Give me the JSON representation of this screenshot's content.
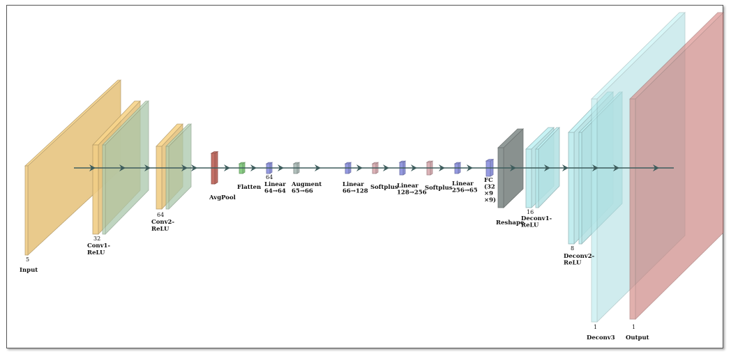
{
  "colors": {
    "conv": "#f8d48a",
    "conv_relu": "#b7d6b8",
    "pool": "#c9746a",
    "flatten": "#8fd48a",
    "linear": "#9a9fe8",
    "augment": "#b9c7c3",
    "softplus": "#e3b8bd",
    "reshape": "#8d9694",
    "deconv": "#bff2f4",
    "output": "#d98a86",
    "arrow": "#3d5c5c"
  },
  "layers": {
    "input": {
      "label": "Input",
      "dim": "5"
    },
    "conv1": {
      "label": [
        "Conv1-",
        "ReLU"
      ],
      "dim": "32"
    },
    "conv2": {
      "label": [
        "Conv2-",
        "ReLU"
      ],
      "dim": "64"
    },
    "avgpool": {
      "label": "AvgPool"
    },
    "flatten": {
      "label": "Flatten"
    },
    "linear1": {
      "label": [
        "Linear",
        "64→64"
      ],
      "dim": "64"
    },
    "augment": {
      "label": [
        "Augment",
        "65→66"
      ]
    },
    "linear2": {
      "label": [
        "Linear",
        "66→128"
      ]
    },
    "softplus1": {
      "label": "Softplus"
    },
    "linear3": {
      "label": [
        "Linear",
        "128→256"
      ]
    },
    "softplus2": {
      "label": "Softplus"
    },
    "linear4": {
      "label": [
        "Linear",
        "256→65"
      ]
    },
    "fc": {
      "label": [
        "FC",
        "(32",
        "×9",
        "×9)"
      ]
    },
    "reshape": {
      "label": "Reshape"
    },
    "deconv1": {
      "label": [
        "Deconv1-",
        "ReLU"
      ],
      "dim": "16"
    },
    "deconv2": {
      "label": [
        "Deconv2-",
        "ReLU"
      ],
      "dim": "8"
    },
    "deconv3": {
      "label": "Deconv3",
      "dim": "1"
    },
    "output": {
      "label": "Output",
      "dim": "1"
    }
  }
}
